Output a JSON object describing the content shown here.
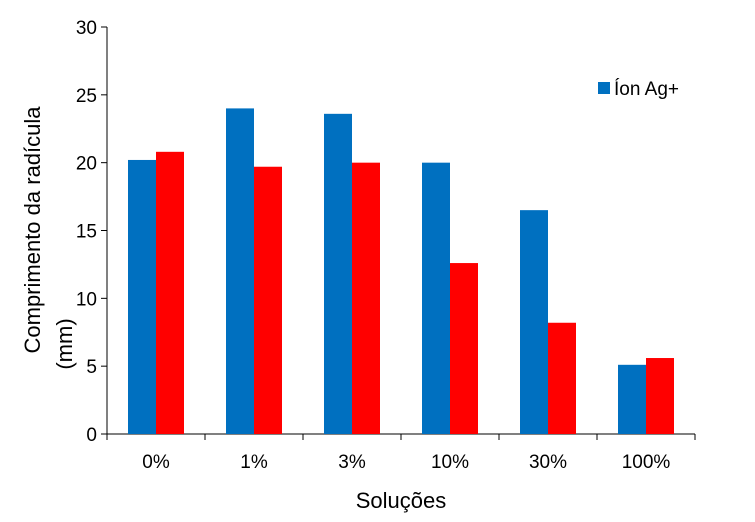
{
  "chart_data": {
    "type": "bar",
    "categories": [
      "0%",
      "1%",
      "3%",
      "10%",
      "30%",
      "100%"
    ],
    "series": [
      {
        "name": "Íon Ag+",
        "color": "#0070C0",
        "values": [
          20.2,
          24.0,
          23.6,
          20.0,
          16.5,
          5.1
        ]
      },
      {
        "color": "#FF0000",
        "values": [
          20.8,
          19.7,
          20.0,
          12.6,
          8.2,
          5.6
        ]
      }
    ],
    "xlabel": "Soluções",
    "ylabel": [
      "Comprimento da radícula",
      "(mm)"
    ],
    "ylim": [
      0,
      30
    ],
    "yticks": [
      "0",
      "5",
      "10",
      "15",
      "20",
      "25",
      "30"
    ],
    "grid": false,
    "legend_position": "right"
  }
}
